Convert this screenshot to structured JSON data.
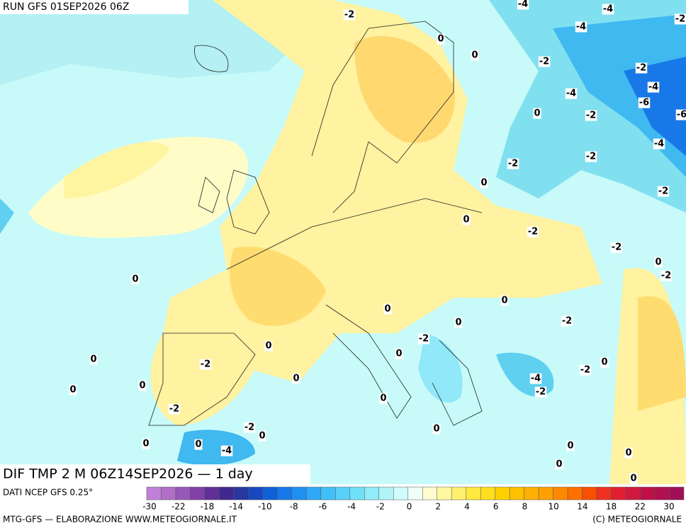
{
  "header": {
    "run": "RUN GFS 01SEP2026 06Z",
    "title": "DIF TMP 2 M 06Z14SEP2026 — 1 day"
  },
  "map_labels": [
    -4,
    -4,
    -2,
    -4,
    -2,
    0,
    0,
    -2,
    -2,
    -4,
    -4,
    -6,
    0,
    -2,
    -6,
    -4,
    -2,
    -2,
    0,
    -2,
    0,
    -2,
    -2,
    0,
    -2,
    0,
    0,
    0,
    0,
    -2,
    -2,
    0,
    0,
    0,
    -2,
    -2,
    0,
    -4,
    0,
    0,
    0,
    -2,
    0,
    -2,
    0,
    -2,
    0,
    0,
    0,
    -4,
    0,
    0,
    0,
    0
  ],
  "legend": {
    "source": "DATI NCEP GFS 0.25°",
    "ticks": [
      -30,
      -22,
      -18,
      -14,
      -10,
      -8,
      -6,
      -4,
      -2,
      0,
      2,
      4,
      6,
      8,
      10,
      14,
      18,
      22,
      30
    ],
    "colors": [
      "#c080d8",
      "#b070c8",
      "#9858b8",
      "#8040a8",
      "#603098",
      "#402890",
      "#2838a0",
      "#1848c0",
      "#1060d8",
      "#1878e8",
      "#2090f0",
      "#30a8f8",
      "#40c0f8",
      "#58d0f8",
      "#70e0f8",
      "#90ecf8",
      "#b0f4f8",
      "#d0fcfc",
      "#f0fff8",
      "#fffcd0",
      "#fff8a0",
      "#fff070",
      "#ffe840",
      "#ffe020",
      "#ffd000",
      "#ffc000",
      "#ffb000",
      "#ffa000",
      "#ff8800",
      "#ff7000",
      "#f85000",
      "#f03020",
      "#e02030",
      "#d01840",
      "#c01048",
      "#b01050",
      "#a01058"
    ]
  },
  "footer": {
    "left": "MTG-GFS — ELABORAZIONE WWW.METEOGIORNALE.IT",
    "right": "(C) METEOGIORNALE"
  }
}
